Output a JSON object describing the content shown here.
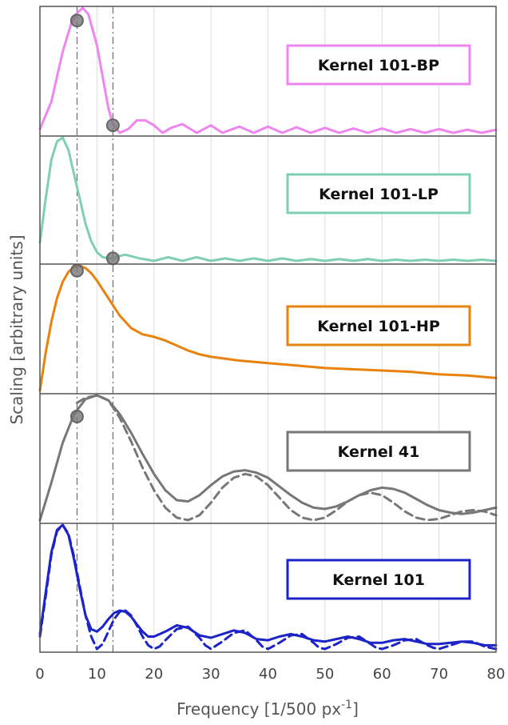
{
  "chart_data": {
    "type": "line",
    "xlabel": "Frequency [1/500 px",
    "xlabel_superscript": "-1",
    "xlabel_suffix": "]",
    "ylabel": "Scaling [arbitrary units]",
    "xlim": [
      0,
      80
    ],
    "xticks": [
      0,
      10,
      20,
      30,
      40,
      50,
      60,
      70,
      80
    ],
    "grid": true,
    "reference_lines_x": [
      6.5,
      12.8
    ],
    "panels": [
      {
        "legend": "Kernel 101-BP",
        "color": "#ef86ef",
        "series": [
          {
            "style": "solid",
            "x": [
              0,
              2,
              4,
              5.5,
              6.5,
              7.5,
              8.5,
              10,
              11,
              12,
              12.8,
              14,
              15.5,
              17,
              18.5,
              20,
              21.5,
              23,
              25,
              27.5,
              30,
              32,
              35,
              37.5,
              40,
              42.5,
              45,
              47.5,
              50,
              52.5,
              55,
              57.5,
              60,
              62.5,
              65,
              67.5,
              70,
              72.5,
              75,
              77.5,
              80
            ],
            "y": [
              0.03,
              0.25,
              0.65,
              0.88,
              0.96,
              1.0,
              0.95,
              0.7,
              0.45,
              0.2,
              0.07,
              -0.02,
              0.03,
              0.1,
              0.1,
              0.06,
              0.0,
              0.04,
              0.07,
              0.0,
              0.06,
              0.0,
              0.05,
              0.0,
              0.05,
              0.0,
              0.045,
              0.0,
              0.04,
              0.0,
              0.035,
              0.0,
              0.035,
              0.0,
              0.03,
              0.0,
              0.03,
              0.0,
              0.025,
              0.0,
              0.025
            ]
          }
        ],
        "markers": [
          {
            "x": 6.5,
            "y": 0.9
          },
          {
            "x": 12.8,
            "y": 0.06
          }
        ]
      },
      {
        "legend": "Kernel 101-LP",
        "color": "#7fcfb0",
        "series": [
          {
            "style": "solid",
            "x": [
              0,
              1,
              2,
              3,
              4,
              5,
              6,
              7,
              8,
              9,
              10,
              11,
              12,
              13,
              14,
              15,
              17.5,
              20,
              22.5,
              25,
              27.5,
              30,
              32.5,
              35,
              37.5,
              40,
              42.5,
              45,
              47.5,
              50,
              52.5,
              55,
              57.5,
              60,
              62.5,
              65,
              67.5,
              70,
              72.5,
              75,
              77.5,
              80
            ],
            "y": [
              0.15,
              0.5,
              0.82,
              0.97,
              1.0,
              0.9,
              0.7,
              0.5,
              0.3,
              0.16,
              0.07,
              0.03,
              0.02,
              0.02,
              0.04,
              0.05,
              0.02,
              -0.03,
              0.03,
              -0.01,
              0.03,
              -0.01,
              0.02,
              -0.01,
              0.02,
              -0.01,
              0.02,
              -0.01,
              0.015,
              -0.01,
              0.015,
              -0.01,
              0.015,
              -0.01,
              0.01,
              -0.01,
              0.01,
              -0.01,
              0.01,
              -0.01,
              0.01,
              0.0
            ]
          }
        ],
        "markers": [
          {
            "x": 12.8,
            "y": 0.02
          }
        ]
      },
      {
        "legend": "Kernel 101-HP",
        "color": "#e8820c",
        "series": [
          {
            "style": "solid",
            "x": [
              0,
              1,
              2,
              3,
              4,
              5,
              6,
              7,
              8,
              9,
              10,
              12,
              14,
              16,
              18,
              20,
              22,
              24,
              26,
              28,
              30,
              35,
              40,
              45,
              50,
              55,
              60,
              65,
              70,
              75,
              80
            ],
            "y": [
              0.0,
              0.3,
              0.55,
              0.74,
              0.87,
              0.95,
              0.99,
              1.0,
              0.98,
              0.94,
              0.88,
              0.74,
              0.6,
              0.5,
              0.45,
              0.43,
              0.4,
              0.36,
              0.32,
              0.29,
              0.27,
              0.24,
              0.22,
              0.2,
              0.18,
              0.17,
              0.16,
              0.15,
              0.13,
              0.12,
              0.1
            ]
          }
        ],
        "markers": [
          {
            "x": 6.5,
            "y": 0.96
          }
        ]
      },
      {
        "legend": "Kernel 41",
        "color": "#777777",
        "series": [
          {
            "style": "solid",
            "x": [
              0,
              2,
              4,
              6,
              8,
              10,
              12,
              14,
              16,
              18,
              20,
              22,
              24,
              26,
              28,
              30,
              32,
              34,
              36,
              38,
              40,
              42,
              44,
              46,
              48,
              50,
              52,
              54,
              56,
              58,
              60,
              62,
              64,
              66,
              68,
              70,
              72,
              74,
              76,
              78,
              80
            ],
            "y": [
              0.0,
              0.3,
              0.62,
              0.85,
              0.97,
              1.0,
              0.96,
              0.85,
              0.7,
              0.53,
              0.37,
              0.24,
              0.16,
              0.15,
              0.2,
              0.28,
              0.35,
              0.39,
              0.4,
              0.38,
              0.34,
              0.27,
              0.2,
              0.14,
              0.1,
              0.09,
              0.11,
              0.15,
              0.2,
              0.24,
              0.26,
              0.25,
              0.22,
              0.17,
              0.12,
              0.08,
              0.06,
              0.05,
              0.06,
              0.08,
              0.1
            ]
          },
          {
            "style": "dashed",
            "x": [
              6.5,
              8,
              10,
              12,
              14,
              16,
              18,
              20,
              22,
              24,
              26,
              28,
              30,
              32,
              34,
              36,
              38,
              40,
              42,
              44,
              46,
              48,
              50,
              52,
              54,
              56,
              58,
              60,
              62,
              64,
              66,
              68,
              70,
              72,
              74,
              76,
              78,
              80
            ],
            "y": [
              0.94,
              0.98,
              1.0,
              0.96,
              0.82,
              0.63,
              0.42,
              0.24,
              0.1,
              0.02,
              0.0,
              0.04,
              0.14,
              0.26,
              0.34,
              0.37,
              0.35,
              0.28,
              0.18,
              0.08,
              0.02,
              0.0,
              0.02,
              0.08,
              0.15,
              0.2,
              0.22,
              0.2,
              0.14,
              0.07,
              0.02,
              0.0,
              0.01,
              0.04,
              0.07,
              0.08,
              0.07,
              0.04
            ]
          }
        ],
        "markers": [
          {
            "x": 6.5,
            "y": 0.83
          }
        ]
      },
      {
        "legend": "Kernel 101",
        "color": "#1c24c8",
        "series": [
          {
            "style": "solid",
            "x": [
              0,
              1,
              2,
              3,
              4,
              5,
              6,
              7,
              8,
              9,
              10,
              11,
              12,
              13,
              14,
              15,
              16,
              17,
              18,
              19,
              20,
              22,
              24,
              26,
              28,
              30,
              32,
              34,
              36,
              38,
              40,
              42,
              44,
              46,
              48,
              50,
              52,
              54,
              56,
              58,
              60,
              62,
              64,
              66,
              68,
              70,
              72,
              74,
              76,
              78,
              80
            ],
            "y": [
              0.12,
              0.45,
              0.78,
              0.96,
              1.0,
              0.92,
              0.72,
              0.48,
              0.27,
              0.16,
              0.14,
              0.18,
              0.24,
              0.29,
              0.31,
              0.3,
              0.26,
              0.2,
              0.14,
              0.1,
              0.1,
              0.14,
              0.19,
              0.17,
              0.11,
              0.09,
              0.12,
              0.15,
              0.13,
              0.08,
              0.07,
              0.1,
              0.12,
              0.1,
              0.07,
              0.06,
              0.08,
              0.1,
              0.08,
              0.05,
              0.05,
              0.07,
              0.08,
              0.06,
              0.04,
              0.04,
              0.05,
              0.06,
              0.05,
              0.03,
              0.03
            ]
          },
          {
            "style": "dashed",
            "x": [
              0,
              1,
              2,
              3,
              4,
              5,
              6,
              7,
              8,
              9,
              10,
              11,
              12,
              13,
              14,
              15,
              16,
              17,
              18,
              19,
              20,
              21,
              22,
              24,
              26,
              28,
              29,
              30,
              32,
              34,
              36,
              38,
              39,
              40,
              42,
              44,
              46,
              48,
              49,
              50,
              52,
              54,
              56,
              58,
              59,
              60,
              62,
              64,
              66,
              68,
              69,
              70,
              72,
              74,
              76,
              78,
              79,
              80
            ],
            "y": [
              0.1,
              0.42,
              0.76,
              0.95,
              1.0,
              0.93,
              0.74,
              0.5,
              0.27,
              0.1,
              0.0,
              0.04,
              0.14,
              0.24,
              0.3,
              0.31,
              0.27,
              0.19,
              0.1,
              0.03,
              0.0,
              0.02,
              0.07,
              0.16,
              0.18,
              0.09,
              0.03,
              0.0,
              0.06,
              0.13,
              0.15,
              0.07,
              0.02,
              0.0,
              0.05,
              0.11,
              0.12,
              0.05,
              0.01,
              0.0,
              0.04,
              0.09,
              0.1,
              0.04,
              0.01,
              0.0,
              0.03,
              0.07,
              0.08,
              0.03,
              0.01,
              0.0,
              0.03,
              0.06,
              0.06,
              0.02,
              0.01,
              0.0
            ]
          }
        ],
        "markers": []
      }
    ]
  }
}
